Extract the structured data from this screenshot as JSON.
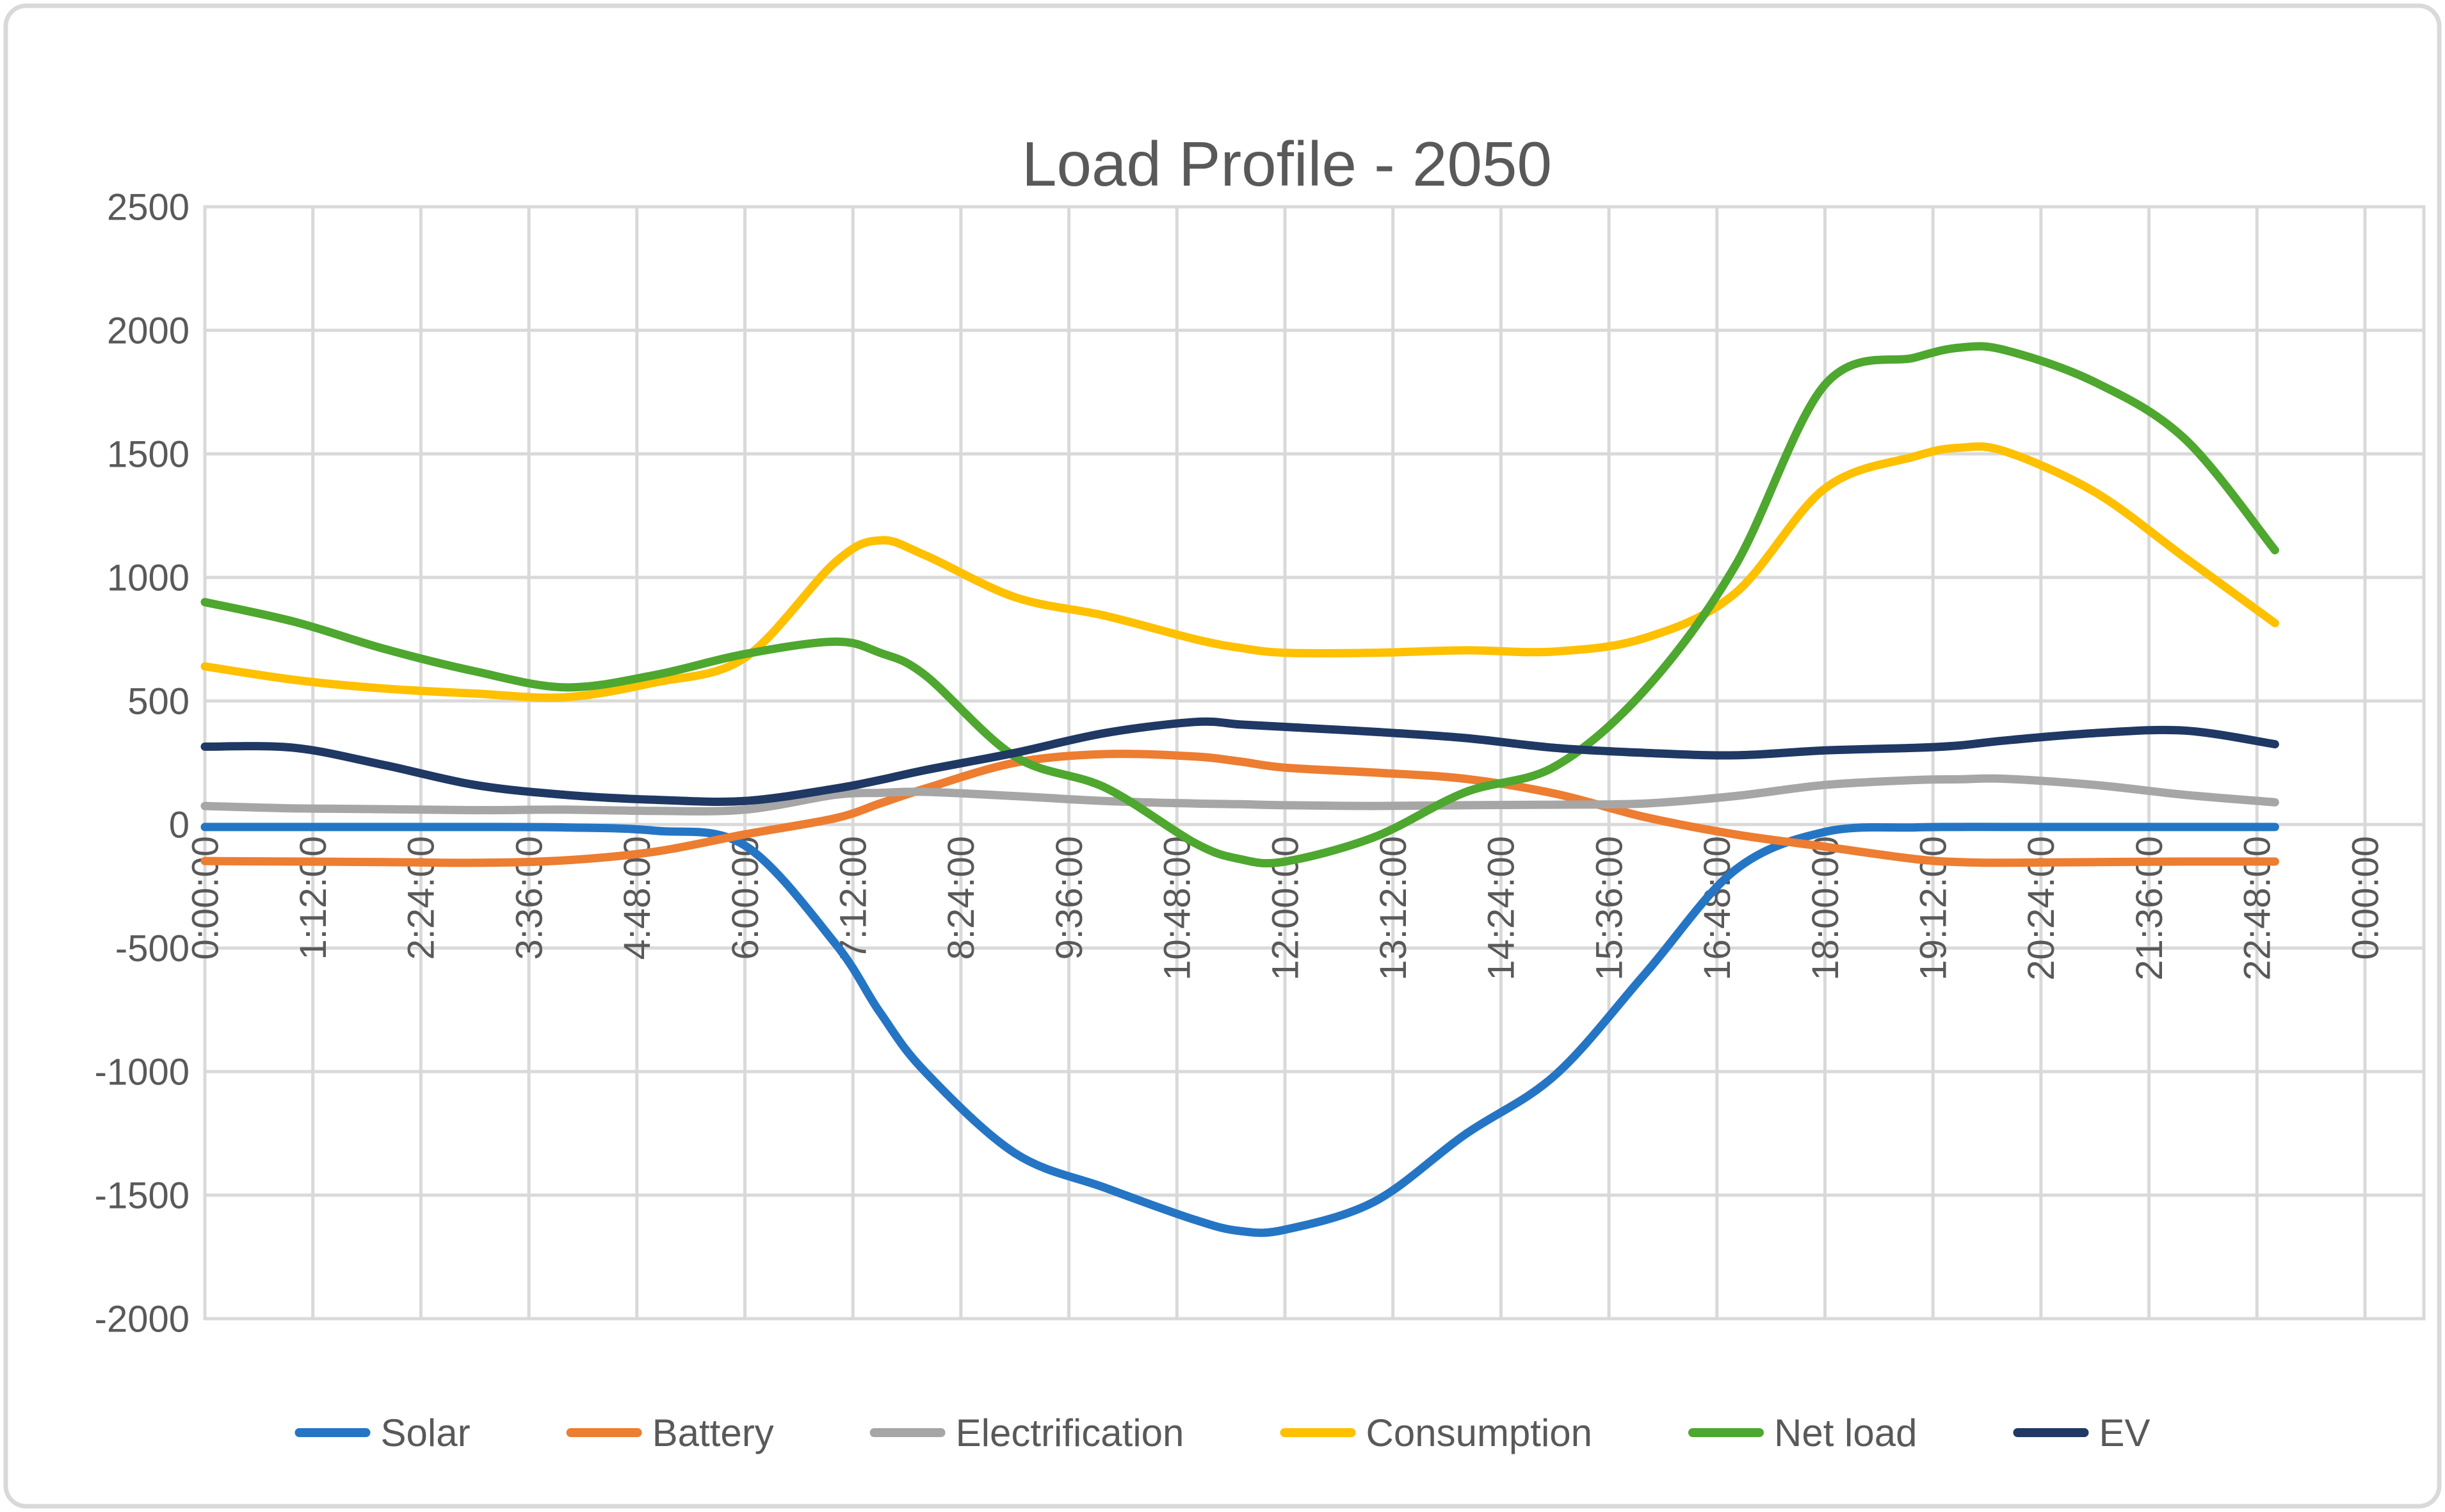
{
  "chart_data": {
    "type": "line",
    "title": "Load Profile - 2050",
    "xlabel": "",
    "ylabel": "",
    "x_unit": "hours",
    "x": [
      0,
      1,
      2,
      3,
      4,
      5,
      6,
      7,
      7.5,
      8,
      9,
      10,
      11,
      11.5,
      12,
      13,
      14,
      15,
      16,
      17,
      18,
      19,
      19.5,
      20,
      21,
      22,
      23
    ],
    "series": [
      {
        "name": "Solar",
        "color": "#2575C5",
        "values": [
          -10,
          -10,
          -10,
          -10,
          -12,
          -25,
          -85,
          -480,
          -760,
          -1000,
          -1330,
          -1470,
          -1600,
          -1645,
          -1640,
          -1525,
          -1255,
          -1015,
          -605,
          -185,
          -30,
          -12,
          -10,
          -10,
          -10,
          -10,
          -10
        ]
      },
      {
        "name": "Battery",
        "color": "#ED7D31",
        "values": [
          -148,
          -150,
          -152,
          -155,
          -145,
          -110,
          -40,
          25,
          85,
          145,
          250,
          285,
          275,
          255,
          230,
          210,
          185,
          125,
          30,
          -40,
          -90,
          -140,
          -152,
          -155,
          -152,
          -150,
          -150
        ]
      },
      {
        "name": "Electrification",
        "color": "#A6A6A6",
        "values": [
          75,
          65,
          62,
          58,
          60,
          55,
          60,
          120,
          128,
          132,
          115,
          95,
          85,
          82,
          78,
          75,
          78,
          80,
          85,
          115,
          160,
          180,
          183,
          185,
          160,
          120,
          90
        ]
      },
      {
        "name": "Consumption",
        "color": "#FFC000",
        "values": [
          640,
          585,
          550,
          530,
          515,
          575,
          675,
          1060,
          1150,
          1090,
          920,
          845,
          750,
          715,
          695,
          695,
          705,
          700,
          755,
          935,
          1360,
          1490,
          1525,
          1510,
          1345,
          1080,
          815
        ]
      },
      {
        "name": "Net load",
        "color": "#4EA72E",
        "values": [
          900,
          820,
          710,
          620,
          555,
          605,
          690,
          740,
          695,
          605,
          275,
          150,
          -75,
          -140,
          -150,
          -50,
          130,
          235,
          545,
          1045,
          1780,
          1890,
          1930,
          1920,
          1790,
          1560,
          1110
        ]
      },
      {
        "name": "EV",
        "color": "#1F3864",
        "values": [
          315,
          310,
          240,
          160,
          120,
          100,
          95,
          145,
          180,
          220,
          290,
          370,
          415,
          405,
          395,
          375,
          350,
          310,
          290,
          280,
          300,
          310,
          320,
          340,
          370,
          380,
          325
        ]
      }
    ],
    "x_tick_labels": [
      "0:00:00",
      "1:12:00",
      "2:24:00",
      "3:36:00",
      "4:48:00",
      "6:00:00",
      "7:12:00",
      "8:24:00",
      "9:36:00",
      "10:48:00",
      "12:00:00",
      "13:12:00",
      "14:24:00",
      "15:36:00",
      "16:48:00",
      "18:00:00",
      "19:12:00",
      "20:24:00",
      "21:36:00",
      "22:48:00",
      "0:00:00"
    ],
    "x_tick_interval_hours": 1.2,
    "x_axis_max_hours": 24,
    "y_ticks": [
      2500,
      2000,
      1500,
      1000,
      500,
      0,
      -500,
      -1000,
      -1500,
      -2000
    ],
    "ylim": [
      -2000,
      2500
    ],
    "grid": true,
    "legend_position": "bottom",
    "legend_labels": [
      "Solar",
      "Battery",
      "Electrification",
      "Consumption",
      "Net load",
      "EV"
    ],
    "colors": {
      "axis_text": "#595959",
      "title_text": "#595959",
      "gridline": "#D9D9D9",
      "frame_border": "#D9D9D9",
      "background": "#FFFFFF"
    }
  }
}
